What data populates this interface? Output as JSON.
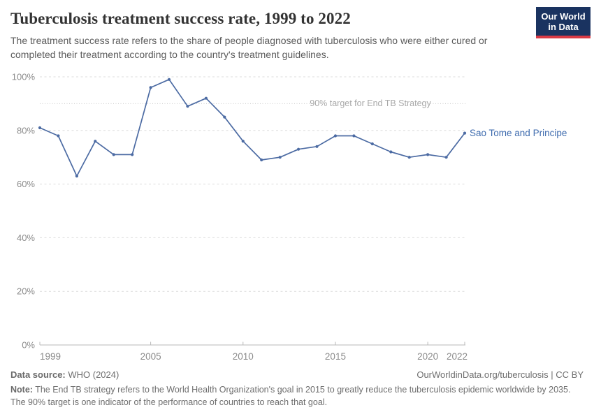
{
  "logo": {
    "line1": "Our World",
    "line2": "in Data",
    "bg_color": "#1a3360",
    "stripe_color": "#d93a45"
  },
  "chart_data": {
    "type": "line",
    "title": "Tuberculosis treatment success rate, 1999 to 2022",
    "subtitle": "The treatment success rate refers to the share of people diagnosed with tuberculosis who were either cured or completed their treatment according to the country's treatment guidelines.",
    "x": [
      1999,
      2000,
      2001,
      2002,
      2003,
      2004,
      2005,
      2006,
      2007,
      2008,
      2009,
      2010,
      2011,
      2012,
      2013,
      2014,
      2015,
      2016,
      2017,
      2018,
      2019,
      2020,
      2021,
      2022
    ],
    "series": [
      {
        "name": "Sao Tome and Principe",
        "color": "#4c6ba3",
        "label_color": "#3e6bae",
        "values": [
          81,
          78,
          63,
          76,
          71,
          71,
          96,
          99,
          89,
          92,
          85,
          76,
          69,
          70,
          73,
          74,
          78,
          78,
          75,
          72,
          70,
          71,
          70,
          79
        ]
      }
    ],
    "ylim": [
      0,
      100
    ],
    "yticks": [
      0,
      20,
      40,
      60,
      80,
      100
    ],
    "ytick_suffix": "%",
    "xticks": [
      1999,
      2005,
      2010,
      2015,
      2020,
      2022
    ],
    "grid": "horizontal-dashed",
    "legend_position": "line-end-label",
    "target_line": {
      "value": 90,
      "label": "90% target for End TB Strategy",
      "text_color": "#a8a8a8",
      "line_color": "#cccccc"
    },
    "axis_color": "#b8b8b8",
    "tick_label_color": "#8b8b8b",
    "gridline_color": "#dcdcdc"
  },
  "footer": {
    "source_label": "Data source:",
    "source_value": " WHO (2024)",
    "link_text": "OurWorldinData.org/tuberculosis | CC BY",
    "note_label": "Note:",
    "note_value": " The End TB strategy refers to the World Health Organization's goal in 2015 to greatly reduce the tuberculosis epidemic worldwide by 2035. The 90% target is one indicator of the performance of countries to reach that goal."
  }
}
